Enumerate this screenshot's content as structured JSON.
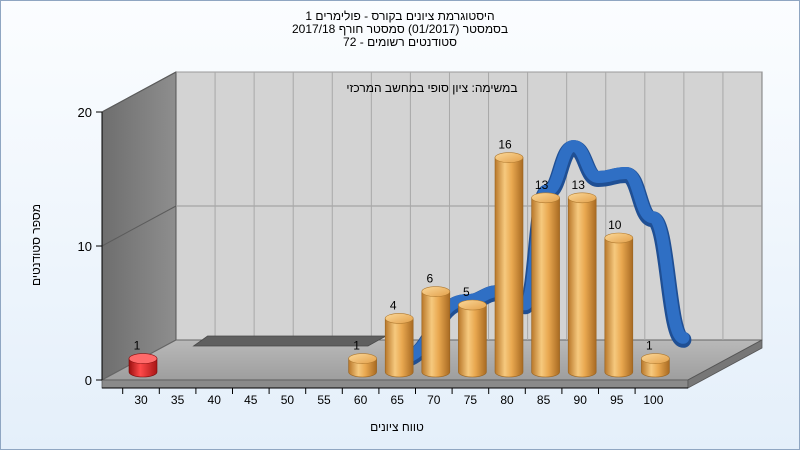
{
  "titles": {
    "line1": "היסטוגרמת ציונים בקורס - פולימרים 1",
    "line2": "בסמסטר  (01/2017)  סמסטר חורף 2017/18",
    "line3": "סטודנטים רשומים - 72"
  },
  "colors": {
    "bar": "#e5a64c",
    "bar_low": "#e02020",
    "curve": "#2f6fc4",
    "wall": "#d0d0d0",
    "left_wall": "#808080"
  },
  "chart_data": {
    "type": "bar",
    "annotation": "במשימה: ציון סופי במחשב המרכזי",
    "xlabel": "טווח ציונים",
    "ylabel": "מספר סטודנטים",
    "categories": [
      "30",
      "35",
      "40",
      "45",
      "50",
      "55",
      "60",
      "65",
      "70",
      "75",
      "80",
      "85",
      "90",
      "95",
      "100"
    ],
    "values": [
      1,
      0,
      0,
      0,
      0,
      0,
      1,
      4,
      6,
      5,
      16,
      13,
      13,
      10,
      1
    ],
    "highlight_category": "30",
    "ylim": [
      0,
      20
    ],
    "yticks": [
      0,
      10,
      20
    ],
    "grid": true,
    "curve": {
      "type": "smoothed-distribution",
      "color": "blue"
    }
  }
}
